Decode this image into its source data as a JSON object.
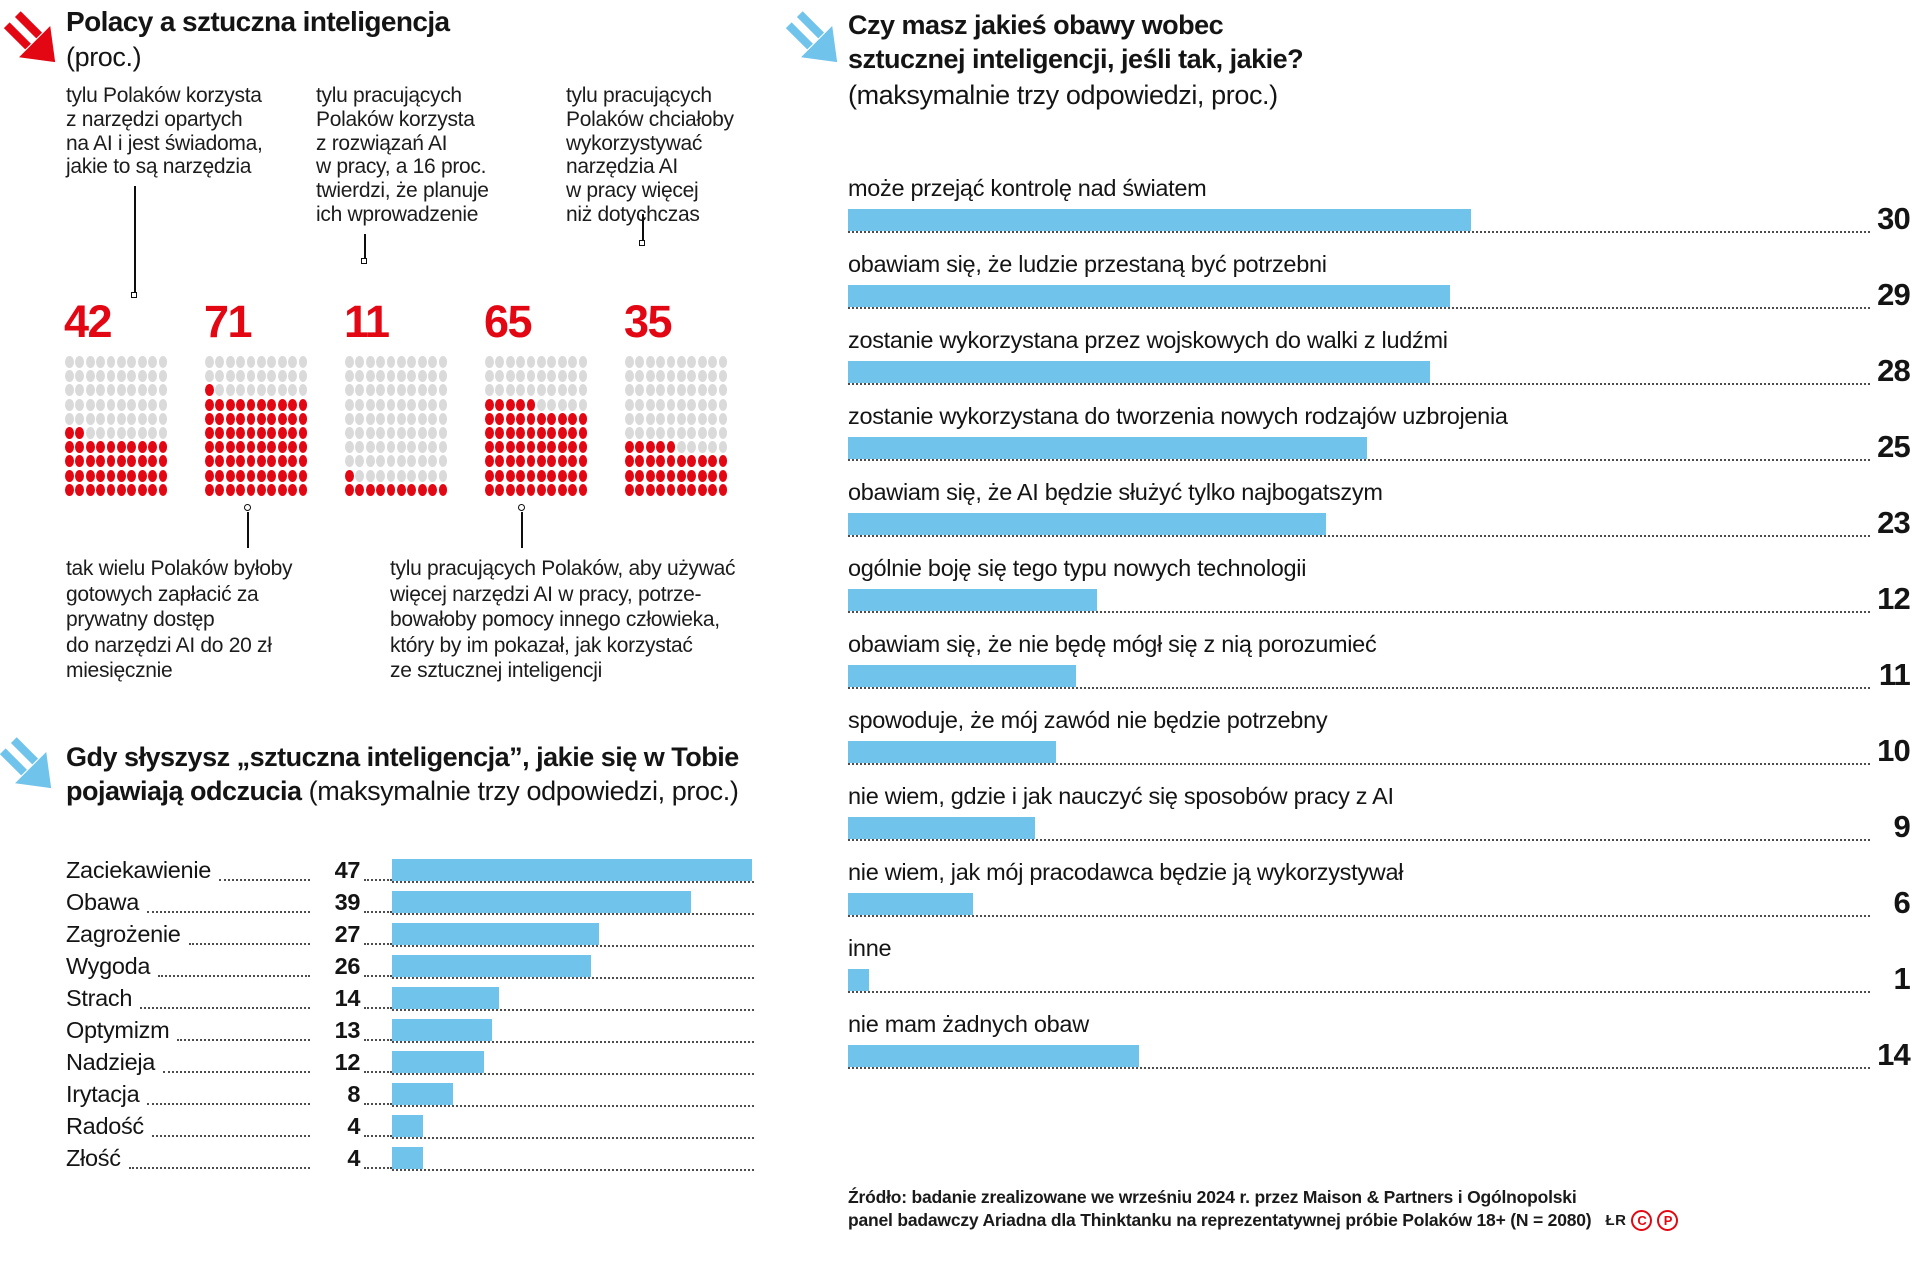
{
  "colors": {
    "red": "#e30613",
    "blue": "#70c3eb",
    "gray_dot": "#dadada"
  },
  "section_tools": {
    "title": "Polacy a sztuczna inteligencja",
    "subtitle": "(proc.)",
    "annotations_top": [
      {
        "text": "tylu Polaków korzysta\nz narzędzi opartych\nna AI i jest świadoma,\njakie to są narzędzia"
      },
      {
        "text": "tylu pracujących\nPolaków korzysta\nz rozwiązań AI\nw pracy, a 16 proc.\ntwierdzi, że planuje\nich wprowadzenie"
      },
      {
        "text": "tylu pracujących\nPolaków chciałoby\nwykorzystywać\nnarzędzia AI\nw pracy więcej\nniż dotychczas"
      }
    ],
    "waffles": [
      42,
      71,
      11,
      65,
      35
    ],
    "annotations_bottom": [
      {
        "text": "tak wielu  Polaków byłoby\ngotowych zapłacić za\nprywatny dostęp\ndo narzędzi AI do 20 zł\nmiesięcznie"
      },
      {
        "text": "tylu pracujących Polaków, aby używać\nwięcej narzędzi AI w pracy, potrze-\nbowałoby pomocy innego człowieka,\nktóry by im pokazał, jak korzystać\nze sztucznej inteligencji"
      }
    ]
  },
  "section_feelings": {
    "title_line1": "Gdy słyszysz „sztuczna inteligencja”, jakie się w Tobie",
    "title_line2_bold": "pojawiają odczucia",
    "title_line2_rest": " (maksymalnie trzy odpowiedzi, proc.)",
    "rows": [
      {
        "label": "Zaciekawienie",
        "value": 47
      },
      {
        "label": "Obawa",
        "value": 39
      },
      {
        "label": "Zagrożenie",
        "value": 27
      },
      {
        "label": "Wygoda",
        "value": 26
      },
      {
        "label": "Strach",
        "value": 14
      },
      {
        "label": "Optymizm",
        "value": 13
      },
      {
        "label": "Nadzieja",
        "value": 12
      },
      {
        "label": "Irytacja",
        "value": 8
      },
      {
        "label": "Radość",
        "value": 4
      },
      {
        "label": "Złość",
        "value": 4
      }
    ]
  },
  "section_concerns": {
    "title_line1": "Czy masz jakieś obawy wobec",
    "title_line2": "sztucznej inteligencji, jeśli tak, jakie?",
    "subtitle": "(maksymalnie trzy odpowiedzi, proc.)",
    "rows": [
      {
        "label": "może przejąć kontrolę nad światem",
        "value": 30
      },
      {
        "label": "obawiam się, że ludzie przestaną być potrzebni",
        "value": 29
      },
      {
        "label": "zostanie wykorzystana przez wojskowych do walki z ludźmi",
        "value": 28
      },
      {
        "label": "zostanie wykorzystana do tworzenia nowych rodzajów uzbrojenia",
        "value": 25
      },
      {
        "label": "obawiam się, że AI będzie służyć tylko najbogatszym",
        "value": 23
      },
      {
        "label": "ogólnie boję się tego typu nowych technologii",
        "value": 12
      },
      {
        "label": "obawiam się, że nie będę mógł się z nią porozumieć",
        "value": 11
      },
      {
        "label": "spowoduje, że mój zawód nie będzie potrzebny",
        "value": 10
      },
      {
        "label": "nie wiem, gdzie i jak nauczyć się sposobów pracy z AI",
        "value": 9
      },
      {
        "label": "nie wiem, jak mój pracodawca będzie ją wykorzystywał",
        "value": 6
      },
      {
        "label": "inne",
        "value": 1
      },
      {
        "label": "nie mam żadnych obaw",
        "value": 14
      }
    ]
  },
  "footer": {
    "line1": "Źródło: badanie zrealizowane we wrześniu 2024 r. przez Maison & Partners i Ogólnopolski",
    "line2": "panel badawczy Ariadna dla Thinktanku na reprezentatywnej próbie Polaków 18+ (N = 2080)",
    "credit": "ŁR",
    "copyright": "C",
    "phonogram": "P"
  },
  "chart_data": [
    {
      "type": "waffle",
      "title": "Polacy a sztuczna inteligencja (proc.)",
      "unit": "percent of 100 dots",
      "values": [
        42,
        71,
        11,
        65,
        35
      ],
      "descriptions": [
        "tylu Polaków korzysta z narzędzi opartych na AI i jest świadoma, jakie to są narzędzia",
        "tak wielu Polaków byłoby gotowych zapłacić za prywatny dostęp do narzędzi AI do 20 zł miesięcznie",
        "tylu pracujących Polaków korzysta z rozwiązań AI w pracy, a 16 proc. twierdzi, że planuje ich wprowadzenie",
        "tylu pracujących Polaków, aby używać więcej narzędzi AI w pracy, potrzebowałoby pomocy innego człowieka, który by im pokazał, jak korzystać ze sztucznej inteligencji",
        "tylu pracujących Polaków chciałoby wykorzystywać narzędzia AI w pracy więcej niż dotychczas"
      ]
    },
    {
      "type": "bar",
      "orientation": "horizontal",
      "title": "Gdy słyszysz „sztuczna inteligencja”, jakie się w Tobie pojawiają odczucia (maksymalnie trzy odpowiedzi, proc.)",
      "categories": [
        "Zaciekawienie",
        "Obawa",
        "Zagrożenie",
        "Wygoda",
        "Strach",
        "Optymizm",
        "Nadzieja",
        "Irytacja",
        "Radość",
        "Złość"
      ],
      "values": [
        47,
        39,
        27,
        26,
        14,
        13,
        12,
        8,
        4,
        4
      ],
      "xlim": [
        0,
        47
      ]
    },
    {
      "type": "bar",
      "orientation": "horizontal",
      "title": "Czy masz jakieś obawy wobec sztucznej inteligencji, jeśli tak, jakie? (maksymalnie trzy odpowiedzi, proc.)",
      "categories": [
        "może przejąć kontrolę nad światem",
        "obawiam się, że ludzie przestaną być potrzebni",
        "zostanie wykorzystana przez wojskowych do walki z ludźmi",
        "zostanie wykorzystana do tworzenia nowych rodzajów uzbrojenia",
        "obawiam się, że AI będzie służyć tylko najbogatszym",
        "ogólnie boję się tego typu nowych technologii",
        "obawiam się, że nie będę mógł się z nią porozumieć",
        "spowoduje, że mój zawód nie będzie potrzebny",
        "nie wiem, gdzie i jak nauczyć się sposobów pracy z AI",
        "nie wiem, jak mój pracodawca będzie ją wykorzystywał",
        "inne",
        "nie mam żadnych obaw"
      ],
      "values": [
        30,
        29,
        28,
        25,
        23,
        12,
        11,
        10,
        9,
        6,
        1,
        14
      ],
      "xlim": [
        0,
        30
      ]
    }
  ]
}
